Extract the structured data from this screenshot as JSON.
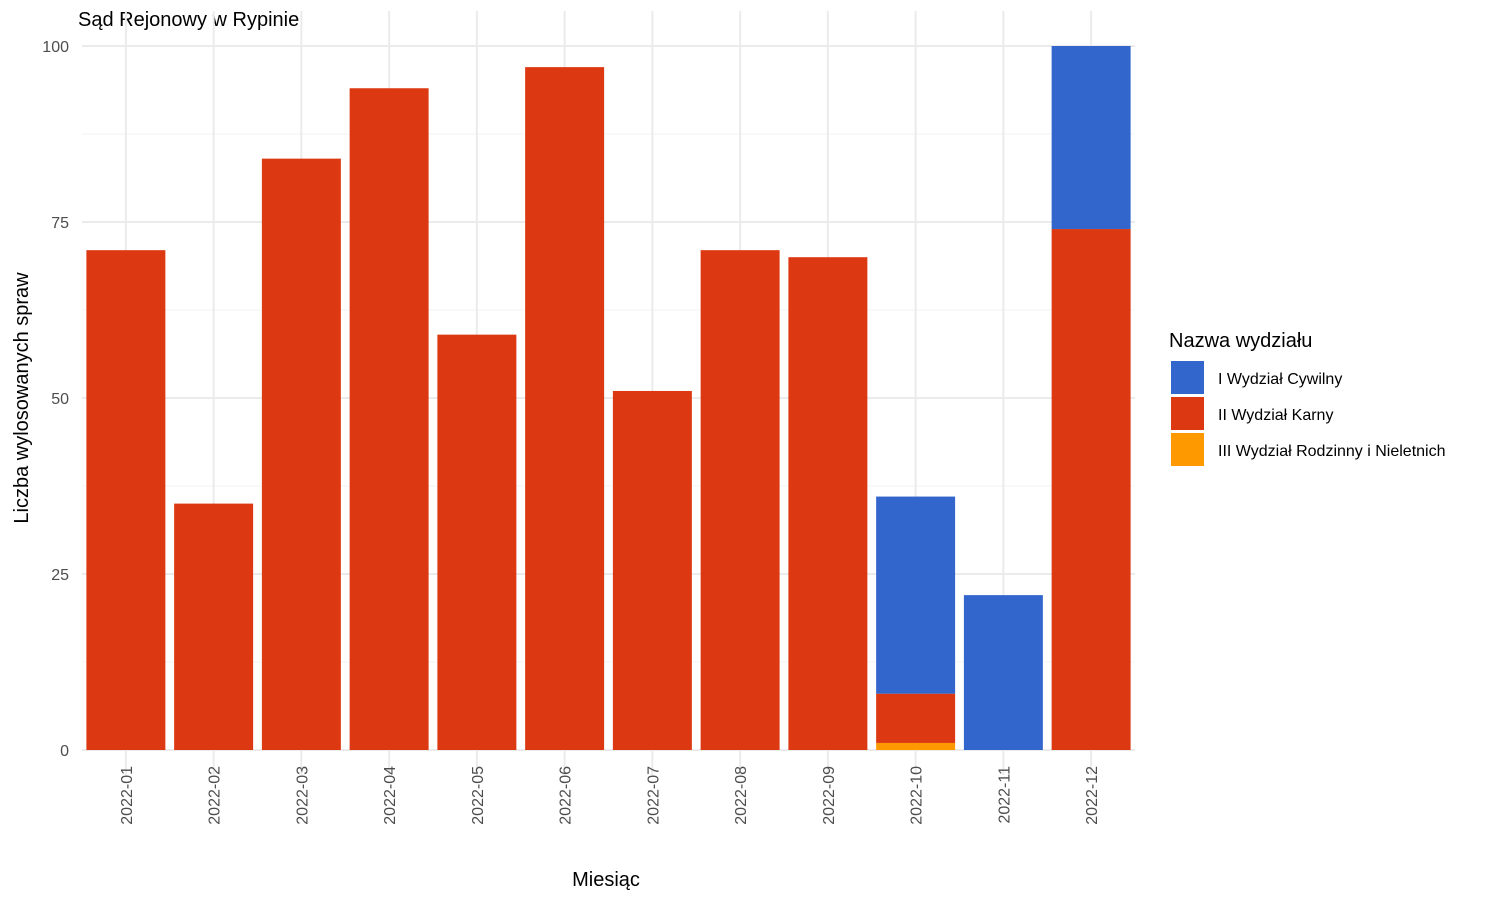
{
  "chart_data": {
    "type": "bar",
    "stacked": true,
    "title": "Sąd Rejonowy w Rypinie",
    "xlabel": "Miesiąc",
    "ylabel": "Liczba wylosowanych spraw",
    "ylim": [
      0,
      100
    ],
    "yticks": [
      0,
      25,
      50,
      75,
      100
    ],
    "grid": true,
    "legend_title": "Nazwa wydziału",
    "legend_position": "right",
    "categories": [
      "2022-01",
      "2022-02",
      "2022-03",
      "2022-04",
      "2022-05",
      "2022-06",
      "2022-07",
      "2022-08",
      "2022-09",
      "2022-10",
      "2022-11",
      "2022-12"
    ],
    "series": [
      {
        "name": "I Wydział Cywilny",
        "color": "#3366cc",
        "values": [
          0,
          0,
          0,
          0,
          0,
          0,
          0,
          0,
          0,
          28,
          22,
          26
        ]
      },
      {
        "name": "II Wydział Karny",
        "color": "#dc3912",
        "values": [
          71,
          35,
          84,
          94,
          59,
          97,
          51,
          71,
          70,
          7,
          0,
          74
        ]
      },
      {
        "name": "III Wydział Rodzinny i Nieletnich",
        "color": "#ff9900",
        "values": [
          0,
          0,
          0,
          0,
          0,
          0,
          0,
          0,
          0,
          1,
          0,
          0
        ]
      }
    ]
  }
}
